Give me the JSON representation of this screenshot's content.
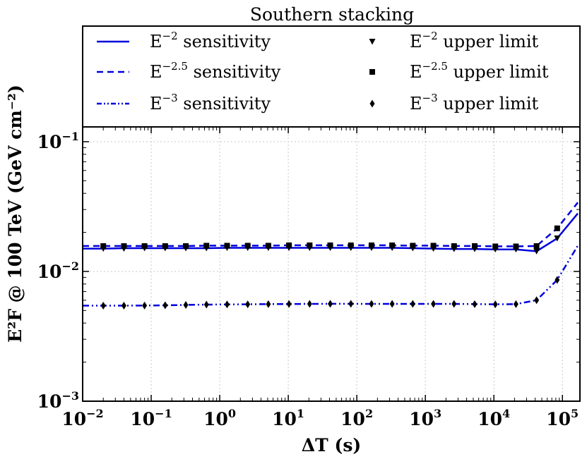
{
  "chart_data": {
    "type": "line",
    "title": "Southern stacking",
    "xlabel": "ΔT (s)",
    "ylabel": "E²F @ 100 TeV (GeV cm⁻²)",
    "xscale": "log",
    "yscale": "log",
    "xlim": [
      0.01,
      180000
    ],
    "ylim": [
      0.001,
      0.13
    ],
    "x_ticks": [
      {
        "value": 0.01,
        "base": "10",
        "exp": "−2"
      },
      {
        "value": 0.1,
        "base": "10",
        "exp": "−1"
      },
      {
        "value": 1,
        "base": "10",
        "exp": "0"
      },
      {
        "value": 10,
        "base": "10",
        "exp": "1"
      },
      {
        "value": 100,
        "base": "10",
        "exp": "2"
      },
      {
        "value": 1000,
        "base": "10",
        "exp": "3"
      },
      {
        "value": 10000,
        "base": "10",
        "exp": "4"
      },
      {
        "value": 100000,
        "base": "10",
        "exp": "5"
      }
    ],
    "y_ticks": [
      {
        "value": 0.001,
        "base": "10",
        "exp": "−3"
      },
      {
        "value": 0.01,
        "base": "10",
        "exp": "−2"
      },
      {
        "value": 0.1,
        "base": "10",
        "exp": "−1"
      }
    ],
    "grid": true,
    "legend_position": "top",
    "x": [
      0.01,
      0.02,
      0.04,
      0.08,
      0.16,
      0.32,
      0.64,
      1.28,
      2.56,
      5.12,
      10.24,
      20.48,
      40.96,
      81.92,
      163.84,
      327.68,
      655.36,
      1310.72,
      2621.44,
      5242.88,
      10485.76,
      20971.52,
      41943.04,
      83886.08,
      167772.16
    ],
    "series": [
      {
        "name": "E⁻² sensitivity",
        "label_base": "E",
        "label_exp": "−2",
        "label_rest": " sensitivity",
        "style": "solid",
        "color": "#0000dd",
        "values": [
          0.015,
          0.015,
          0.0151,
          0.0151,
          0.0151,
          0.0151,
          0.0151,
          0.0152,
          0.0152,
          0.0152,
          0.0152,
          0.0152,
          0.0152,
          0.0152,
          0.0152,
          0.0152,
          0.0151,
          0.015,
          0.0149,
          0.0149,
          0.0148,
          0.0148,
          0.0143,
          0.018,
          0.028
        ]
      },
      {
        "name": "E⁻²·⁵ sensitivity",
        "label_base": "E",
        "label_exp": "−2.5",
        "label_rest": " sensitivity",
        "style": "dashed",
        "color": "#0000dd",
        "values": [
          0.0157,
          0.0157,
          0.0157,
          0.0157,
          0.0157,
          0.0157,
          0.0158,
          0.0158,
          0.0158,
          0.0158,
          0.0159,
          0.0159,
          0.0159,
          0.0159,
          0.0159,
          0.0159,
          0.0158,
          0.0158,
          0.0157,
          0.0157,
          0.0156,
          0.0156,
          0.0157,
          0.0215,
          0.034
        ]
      },
      {
        "name": "E⁻³ sensitivity",
        "label_base": "E",
        "label_exp": "−3",
        "label_rest": " sensitivity",
        "style": "dashdot",
        "color": "#0000dd",
        "values": [
          0.00545,
          0.00545,
          0.00545,
          0.00546,
          0.00548,
          0.00552,
          0.00555,
          0.00557,
          0.00558,
          0.0056,
          0.00561,
          0.00562,
          0.00563,
          0.00563,
          0.00562,
          0.00562,
          0.00562,
          0.00562,
          0.00562,
          0.0056,
          0.00558,
          0.0056,
          0.006,
          0.0086,
          0.0158
        ]
      }
    ],
    "markers": [
      {
        "name": "E⁻² upper limit",
        "label_base": "E",
        "label_exp": "−2",
        "label_rest": " upper limit",
        "shape": "triangle-down",
        "x": [
          0.02,
          0.04,
          0.08,
          0.16,
          0.32,
          0.64,
          1.28,
          2.56,
          5.12,
          10.24,
          20.48,
          40.96,
          81.92,
          163.84,
          327.68,
          655.36,
          1310.72,
          2621.44,
          5242.88,
          10485.76,
          20971.52,
          41943.04,
          83886.08
        ],
        "values": [
          0.015,
          0.015,
          0.0151,
          0.0151,
          0.0151,
          0.0151,
          0.0152,
          0.0152,
          0.0152,
          0.0152,
          0.0152,
          0.0152,
          0.0152,
          0.0152,
          0.0152,
          0.0151,
          0.015,
          0.0149,
          0.0149,
          0.0148,
          0.0148,
          0.0143,
          0.018
        ]
      },
      {
        "name": "E⁻²·⁵ upper limit",
        "label_base": "E",
        "label_exp": "−2.5",
        "label_rest": " upper limit",
        "shape": "square",
        "x": [
          0.02,
          0.04,
          0.08,
          0.16,
          0.32,
          0.64,
          1.28,
          2.56,
          5.12,
          10.24,
          20.48,
          40.96,
          81.92,
          163.84,
          327.68,
          655.36,
          1310.72,
          2621.44,
          5242.88,
          10485.76,
          20971.52,
          41943.04,
          83886.08
        ],
        "values": [
          0.0157,
          0.0157,
          0.0157,
          0.0157,
          0.0157,
          0.0158,
          0.0158,
          0.0158,
          0.0158,
          0.0159,
          0.0159,
          0.0159,
          0.0159,
          0.0159,
          0.0159,
          0.0158,
          0.0158,
          0.0157,
          0.0157,
          0.0156,
          0.0156,
          0.0157,
          0.0215
        ]
      },
      {
        "name": "E⁻³ upper limit",
        "label_base": "E",
        "label_exp": "−3",
        "label_rest": " upper limit",
        "shape": "diamond",
        "x": [
          0.02,
          0.04,
          0.08,
          0.16,
          0.32,
          0.64,
          1.28,
          2.56,
          5.12,
          10.24,
          20.48,
          40.96,
          81.92,
          163.84,
          327.68,
          655.36,
          1310.72,
          2621.44,
          5242.88,
          10485.76,
          20971.52,
          41943.04,
          83886.08
        ],
        "values": [
          0.00545,
          0.00545,
          0.00546,
          0.00548,
          0.00552,
          0.00555,
          0.00557,
          0.00558,
          0.0056,
          0.00561,
          0.00562,
          0.00563,
          0.00563,
          0.00562,
          0.00562,
          0.00562,
          0.00562,
          0.00562,
          0.0056,
          0.00558,
          0.0056,
          0.006,
          0.0086
        ]
      }
    ]
  }
}
